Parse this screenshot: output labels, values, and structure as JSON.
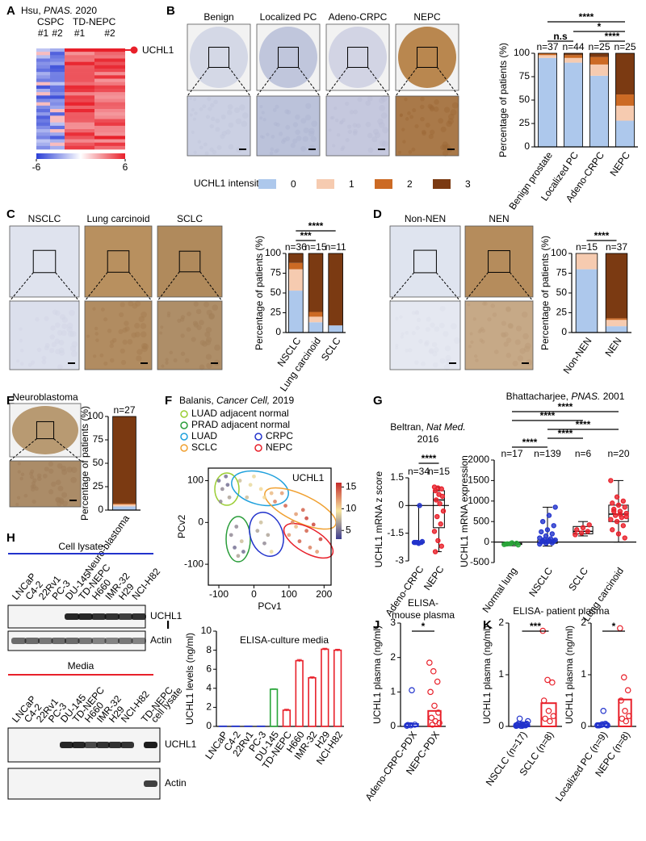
{
  "panel_labels": [
    "A",
    "B",
    "C",
    "D",
    "E",
    "F",
    "G",
    "H",
    "I",
    "J",
    "K"
  ],
  "heatmap": {
    "citation": {
      "author": "Hsu,",
      "journal": "PNAS.",
      "year": "2020"
    },
    "groups": [
      {
        "name": "CSPC",
        "color": "#3344cc"
      },
      {
        "name": "TD-NEPC",
        "color": "#e8202a"
      }
    ],
    "samples": [
      "#1",
      "#2",
      "#1",
      "#2"
    ],
    "gene": "UCHL1",
    "gene_color": "#e8202a",
    "colorbar_ticks": [
      -6,
      6
    ]
  },
  "micrographs": [
    {
      "label": "Benign",
      "color": "#000000"
    },
    {
      "label": "Localized PC",
      "color": "#000000"
    },
    {
      "label": "Adeno-CRPC",
      "color": "#2233cc"
    },
    {
      "label": "NEPC",
      "color": "#e8202a"
    },
    {
      "label": "NSCLC",
      "color": "#2233cc"
    },
    {
      "label": "Lung carcinoid",
      "color": "#e8202a"
    },
    {
      "label": "SCLC",
      "color": "#e8202a"
    },
    {
      "label": "Non-NEN",
      "color": "#2233cc"
    },
    {
      "label": "NEN",
      "color": "#e8202a"
    },
    {
      "label": "Neuroblastoma",
      "color": "#e8202a"
    }
  ],
  "intensity_legend": {
    "title": "UCHL1 intensity",
    "levels": [
      {
        "name": "0",
        "color": "#adc8ec"
      },
      {
        "name": "1",
        "color": "#f6cbb0"
      },
      {
        "name": "2",
        "color": "#cc6a24"
      },
      {
        "name": "3",
        "color": "#7b3a12"
      }
    ]
  },
  "chart_data": [
    {
      "type": "stacked_bar",
      "categories": [
        "Benign prostate",
        "Localized PC",
        "Adeno-CRPC",
        "NEPC"
      ],
      "category_colors": [
        "#000000",
        "#000000",
        "#2233cc",
        "#e8202a"
      ],
      "n_labels": [
        "n=37",
        "n=44",
        "n=25",
        "n=25"
      ],
      "series": [
        {
          "values": [
            95,
            90,
            76,
            28
          ]
        },
        {
          "values": [
            3,
            5,
            12,
            16
          ]
        },
        {
          "values": [
            2,
            3,
            8,
            12
          ]
        },
        {
          "values": [
            0,
            2,
            4,
            44
          ]
        }
      ],
      "ylabel": "Percentage of patients (%)",
      "ylim": [
        0,
        100
      ],
      "yticks": [
        0,
        25,
        50,
        75,
        100
      ],
      "significance": [
        "****",
        "*",
        "n.s",
        "****"
      ]
    },
    {
      "type": "stacked_bar",
      "categories": [
        "NSCLC",
        "Lung carcinoid",
        "SCLC"
      ],
      "category_colors": [
        "#2233cc",
        "#e8202a",
        "#e8202a"
      ],
      "n_labels": [
        "n=36",
        "n=15",
        "n=11"
      ],
      "series": [
        {
          "values": [
            53,
            13,
            9
          ]
        },
        {
          "values": [
            27,
            7,
            0
          ]
        },
        {
          "values": [
            8,
            6,
            0
          ]
        },
        {
          "values": [
            12,
            74,
            91
          ]
        }
      ],
      "ylabel": "Percentage of patients (%)",
      "ylim": [
        0,
        100
      ],
      "yticks": [
        0,
        25,
        50,
        75,
        100
      ],
      "significance": [
        "****",
        "***"
      ]
    },
    {
      "type": "stacked_bar",
      "categories": [
        "Non-NEN",
        "NEN"
      ],
      "category_colors": [
        "#2233cc",
        "#e8202a"
      ],
      "n_labels": [
        "n=15",
        "n=37"
      ],
      "series": [
        {
          "values": [
            80,
            8
          ]
        },
        {
          "values": [
            20,
            8
          ]
        },
        {
          "values": [
            0,
            2
          ]
        },
        {
          "values": [
            0,
            82
          ]
        }
      ],
      "ylabel": "Percentage of patients (%)",
      "ylim": [
        0,
        100
      ],
      "yticks": [
        0,
        25,
        50,
        75,
        100
      ],
      "significance": [
        "****"
      ]
    },
    {
      "type": "stacked_bar",
      "categories": [
        "Neuro-blastoma"
      ],
      "category_colors": [
        "#e8202a"
      ],
      "n_labels": [
        "n=27"
      ],
      "series": [
        {
          "values": [
            4
          ]
        },
        {
          "values": [
            2
          ]
        },
        {
          "values": [
            1
          ]
        },
        {
          "values": [
            93
          ]
        }
      ],
      "ylabel": "Percentage of patients (%)",
      "ylim": [
        0,
        100
      ],
      "yticks": [
        0,
        25,
        50,
        75,
        100
      ],
      "significance": []
    },
    {
      "type": "scatter",
      "citation": {
        "author": "Balanis,",
        "journal": "Cancer Cell,",
        "year": "2019"
      },
      "legend": [
        {
          "name": "LUAD adjacent normal",
          "color": "#9acd32"
        },
        {
          "name": "PRAD adjacent normal",
          "color": "#2a9d3a"
        },
        {
          "name": "LUAD",
          "color": "#1ea0dc"
        },
        {
          "name": "CRPC",
          "color": "#2233cc"
        },
        {
          "name": "SCLC",
          "color": "#f0a030"
        },
        {
          "name": "NEPC",
          "color": "#e8202a"
        }
      ],
      "annotation": "UCHL1",
      "annotation_color": "#e8202a",
      "x": [
        -100,
        -90,
        -80,
        -70,
        -95,
        -75,
        -65,
        -55,
        -45,
        -35,
        -50,
        -30,
        -40,
        -10,
        20,
        50,
        0,
        30,
        -20,
        60,
        90,
        120,
        150,
        80,
        110,
        140,
        170,
        10,
        30,
        50,
        20,
        40,
        100,
        130,
        160,
        190,
        120,
        150,
        180
      ],
      "y": [
        100,
        80,
        110,
        60,
        50,
        90,
        -30,
        -60,
        -80,
        -45,
        -10,
        -70,
        100,
        90,
        80,
        70,
        110,
        60,
        60,
        50,
        40,
        20,
        10,
        70,
        0,
        30,
        -5,
        -20,
        -50,
        -70,
        0,
        -30,
        -30,
        -45,
        -60,
        -40,
        -10,
        -20,
        -70
      ],
      "values": [
        5,
        6,
        5,
        7,
        6,
        5,
        6,
        5,
        7,
        8,
        6,
        5,
        8,
        9,
        10,
        11,
        9,
        10,
        8,
        13,
        14,
        12,
        15,
        12,
        13,
        14,
        15,
        7,
        6,
        9,
        8,
        7,
        12,
        14,
        13,
        15,
        11,
        14,
        12
      ],
      "clim": [
        3,
        16
      ],
      "colorbar_ticks": [
        5,
        10,
        15
      ],
      "xlim": [
        -130,
        220
      ],
      "ylim": [
        -150,
        130
      ],
      "xticks": [
        -100,
        0,
        100,
        200
      ],
      "yticks": [
        -100,
        0,
        100
      ],
      "xlabel": "PCv1",
      "ylabel": "PCv2"
    },
    {
      "type": "dot",
      "citation": {
        "author": "Beltran,",
        "journal": "Nat Med.",
        "year": "2016"
      },
      "categories": [
        "Adeno-CRPC",
        "NEPC"
      ],
      "category_colors": [
        "#2233cc",
        "#e8202a"
      ],
      "n_labels": [
        "n=34",
        "n=15"
      ],
      "filled_markers": true,
      "points": [
        [
          -2,
          -2,
          -2,
          -2,
          -2.05,
          -1.95,
          -2,
          0
        ],
        [
          1,
          0.95,
          0.9,
          0.8,
          0.6,
          0.5,
          0.3,
          0.1,
          -0.3,
          -0.6,
          -1,
          -1.4,
          -1.9,
          -2.2,
          -2.5
        ]
      ],
      "boxes": [
        [
          -2.05,
          -2,
          -2,
          -2,
          0
        ],
        [
          -2.5,
          -1.2,
          0.3,
          0.8,
          1
        ]
      ],
      "ylabel": "UCHL1 mRNA z score",
      "ylim": [
        -3,
        1.5
      ],
      "yticks": [
        -3,
        -1.5,
        0,
        1.5
      ],
      "significance": [
        "****"
      ]
    },
    {
      "type": "dot",
      "citation": {
        "author": "Bhattacharjee,",
        "journal": "PNAS.",
        "year": "2001"
      },
      "categories": [
        "Normal lung",
        "NSCLC",
        "SCLC",
        "Lung carcinoid"
      ],
      "category_colors": [
        "#000000",
        "#2233cc",
        "#e8202a",
        "#e8202a"
      ],
      "point_colors": [
        "#2aa63a",
        "#2233cc",
        "#e8202a",
        "#e8202a"
      ],
      "n_labels": [
        "n=17",
        "n=139",
        "n=6",
        "n=20"
      ],
      "filled_markers": true,
      "points": [
        [
          -60,
          -40,
          -30,
          -50,
          -20,
          -70,
          -45
        ],
        [
          -50,
          -30,
          -20,
          0,
          10,
          20,
          30,
          40,
          50,
          60,
          80,
          100,
          150,
          200,
          250,
          300,
          400,
          500,
          650,
          850
        ],
        [
          180,
          220,
          260,
          300,
          350,
          420
        ],
        [
          1500,
          1100,
          1000,
          950,
          900,
          850,
          800,
          750,
          700,
          650,
          600,
          550,
          500,
          400,
          300,
          200,
          100,
          750,
          680,
          620
        ]
      ],
      "boxes": [
        [
          -90,
          -60,
          -45,
          -30,
          -10
        ],
        [
          -100,
          -30,
          0,
          50,
          850
        ],
        [
          150,
          200,
          260,
          380,
          500
        ],
        [
          0,
          500,
          680,
          900,
          1500
        ]
      ],
      "ylabel": "UCHL1 mRNA expression",
      "ylim": [
        -500,
        2000
      ],
      "yticks": [
        -500,
        0,
        500,
        1000,
        1500,
        2000
      ],
      "significance": [
        "****",
        "****",
        "****",
        "****",
        "****"
      ]
    },
    {
      "type": "bar",
      "title": "ELISA-culture media",
      "categories": [
        "LNCaP",
        "C4-2",
        "22Rv1",
        "PC-3",
        "DU-145",
        "TD-NEPC",
        "H660",
        "IMR-32",
        "H29",
        "NCI-H82"
      ],
      "category_colors": [
        "#000000",
        "#000000",
        "#000000",
        "#000000",
        "#2aa63a",
        "#e8202a",
        "#e8202a",
        "#e8202a",
        "#e8202a",
        "#e8202a"
      ],
      "bar_colors": [
        "#2233cc",
        "#2233cc",
        "#2233cc",
        "#2233cc",
        "#2aa63a",
        "#e8202a",
        "#e8202a",
        "#e8202a",
        "#e8202a",
        "#e8202a"
      ],
      "values": [
        0.02,
        0.02,
        0.02,
        0.02,
        3.9,
        1.7,
        6.9,
        5.1,
        8.1,
        8.0
      ],
      "errors": [
        0,
        0,
        0,
        0,
        0.05,
        0.1,
        0.12,
        0.1,
        0.1,
        0.1
      ],
      "ylabel": "UCHL1 levels (ng/ml)",
      "ylim": [
        0,
        10
      ],
      "yticks": [
        0,
        2,
        4,
        6,
        8,
        10
      ]
    },
    {
      "type": "dot",
      "title": [
        "ELISA-",
        "mouse plasma"
      ],
      "categories": [
        "Adeno-CRPC-PDX",
        "NEPC-PDX"
      ],
      "category_colors": [
        "#2233cc",
        "#e8202a"
      ],
      "points": [
        [
          0.02,
          0.03,
          0.05,
          0.04,
          1.05
        ],
        [
          1.85,
          1.6,
          1.3,
          1.0,
          0.6,
          0.4,
          0.25,
          0.15,
          0.1,
          0.05
        ]
      ],
      "means": [
        0.07,
        0.45
      ],
      "ylabel": "UCHL1 plasma (ng/ml)",
      "ylim": [
        0,
        3
      ],
      "yticks": [
        0,
        1,
        2,
        3
      ],
      "significance": [
        "*"
      ]
    },
    {
      "type": "dot",
      "title": [
        "ELISA- patient plasma"
      ],
      "categories": [
        "NSCLC (n=17)",
        "SCLC (n=8)"
      ],
      "category_colors": [
        "#2233cc",
        "#e8202a"
      ],
      "points": [
        [
          0.01,
          0.02,
          0.03,
          0.02,
          0.01,
          0.04,
          0.05,
          0.02,
          0.1,
          0.15,
          0.03,
          0.02,
          0.01,
          0.02,
          0.03,
          0.04,
          0.05
        ],
        [
          1.85,
          0.9,
          0.85,
          0.5,
          0.3,
          0.2,
          0.15,
          0.1
        ]
      ],
      "means": [
        0.03,
        0.45
      ],
      "ylabel": "UCHL1 plasma (ng/ml)",
      "ylim": [
        0,
        2
      ],
      "yticks": [
        0,
        1,
        2
      ],
      "significance": [
        "***"
      ]
    },
    {
      "type": "dot",
      "categories": [
        "Localized PC (n=9)",
        "NEPC (n=8)"
      ],
      "category_colors": [
        "#2233cc",
        "#e8202a"
      ],
      "points": [
        [
          0.02,
          0.03,
          0.05,
          0.02,
          0.04,
          0.03,
          0.02,
          0.3,
          0.02
        ],
        [
          1.9,
          0.95,
          0.7,
          0.5,
          0.3,
          0.2,
          0.15,
          0.1
        ]
      ],
      "means": [
        0.05,
        0.52
      ],
      "ylabel": "UCHL1 plasma (ng/ml)",
      "ylim": [
        0,
        2
      ],
      "yticks": [
        0,
        1,
        2
      ],
      "significance": [
        "*"
      ]
    }
  ],
  "western_blot": {
    "cell_lysate_title": "Cell lysate",
    "cell_lysate_color": "#2233cc",
    "media_title": "Media",
    "media_color": "#e8202a",
    "lanes": [
      {
        "label": "LNCaP",
        "color": "#000000"
      },
      {
        "label": "C4-2",
        "color": "#000000"
      },
      {
        "label": "22Rv1",
        "color": "#000000"
      },
      {
        "label": "PC-3",
        "color": "#000000"
      },
      {
        "label": "DU-145",
        "color": "#2aa63a"
      },
      {
        "label": "TD-NEPC",
        "color": "#e8202a"
      },
      {
        "label": "H660",
        "color": "#e8202a"
      },
      {
        "label": "IMR-32",
        "color": "#e8202a"
      },
      {
        "label": "H29",
        "color": "#e8202a"
      },
      {
        "label": "NCI-H82",
        "color": "#e8202a"
      }
    ],
    "extra_lane": {
      "lines": [
        "TD-NEPC",
        "cell lysate"
      ],
      "color": "#2233cc"
    },
    "proteins": [
      "UCHL1",
      "Actin"
    ]
  }
}
